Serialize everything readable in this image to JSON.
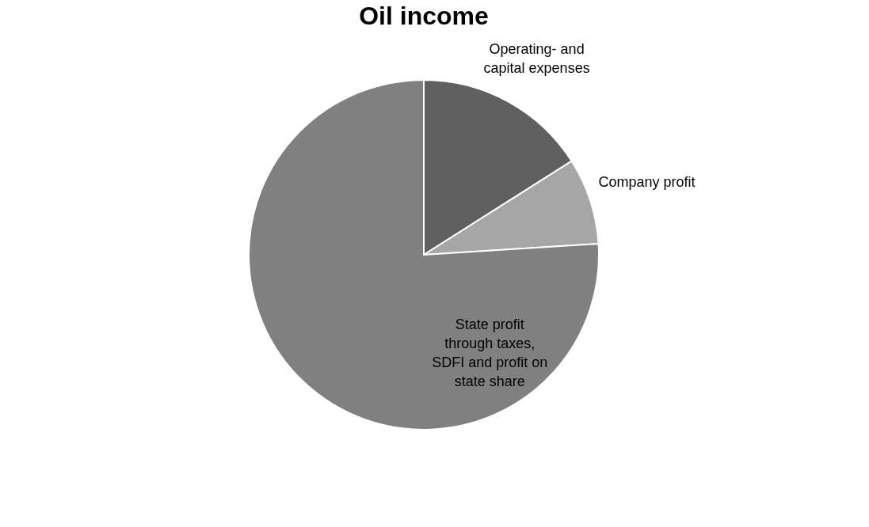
{
  "chart_data": {
    "type": "pie",
    "title": "Oil income",
    "categories": [
      "Operating- and capital expenses",
      "Company profit",
      "State profit through taxes, SDFI and profit on state share"
    ],
    "values": [
      16,
      8,
      76
    ],
    "colors": [
      "#606060",
      "#a6a6a6",
      "#808080"
    ],
    "legend": false
  }
}
